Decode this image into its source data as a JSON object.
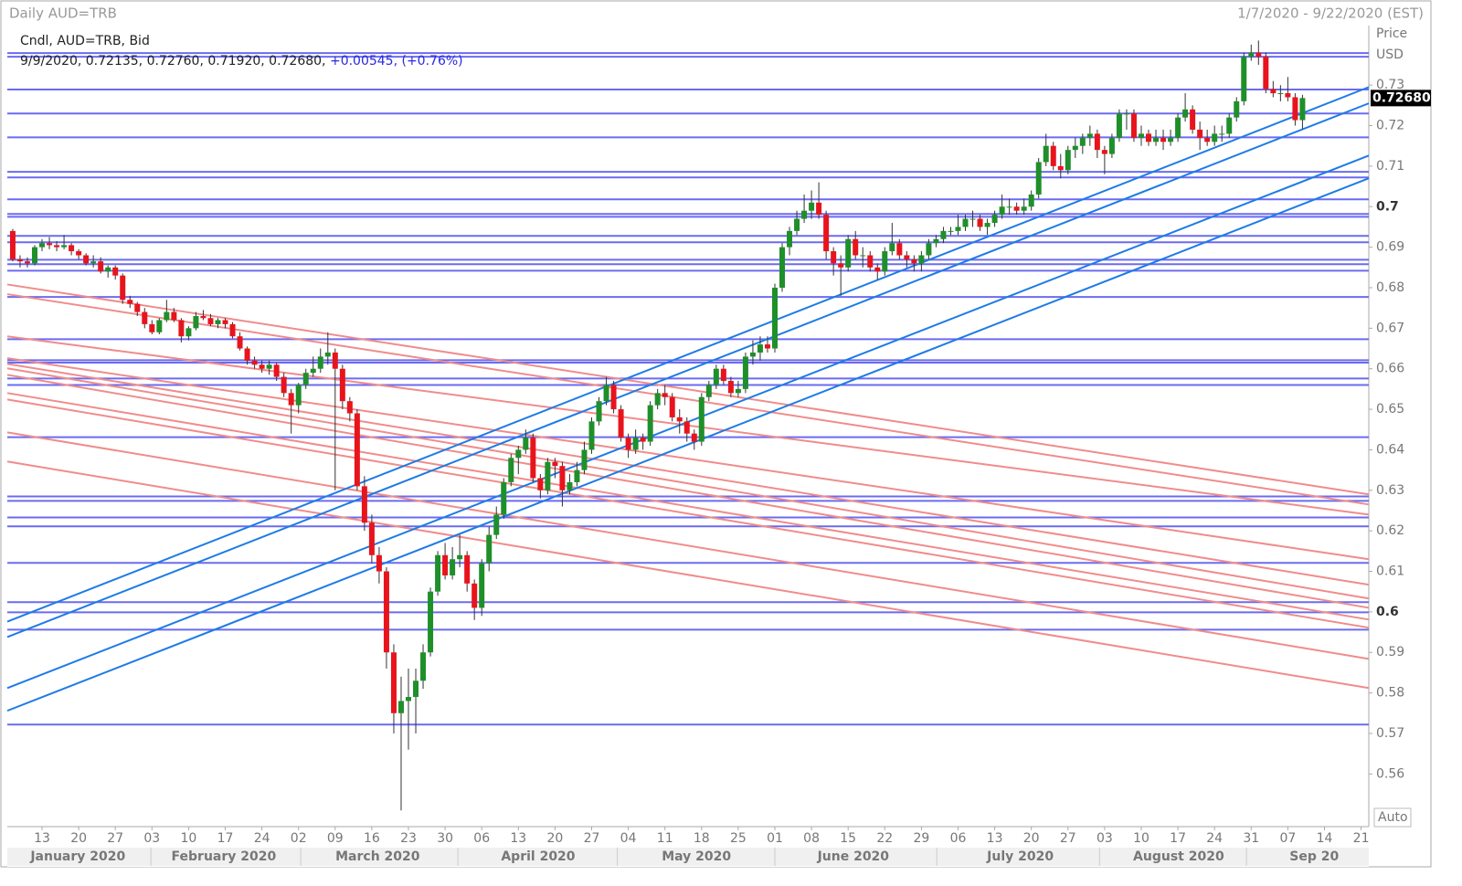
{
  "chart_data": {
    "type": "candlestick",
    "title": "Daily AUD=TRB",
    "date_range": "1/7/2020 - 9/22/2020 (EST)",
    "legend_title": "Cndl, AUD=TRB, Bid",
    "info_line": "9/9/2020, 0.72135, 0.72760, 0.71920, 0.72680,",
    "change_text": "+0.00545, (+0.76%)",
    "axis_title": "Price",
    "axis_unit": "USD",
    "scale_mode": "Auto",
    "up_color": "#1f8f2a",
    "down_color": "#e8141c",
    "hline_color": "#6b6bf0",
    "support_color": "#1e7be6",
    "resistance_color": "#f08c8c",
    "xlim": [
      -0.74,
      185.05
    ],
    "ylim": [
      0.547,
      0.751
    ],
    "yticks": [
      0.73,
      0.72,
      0.71,
      0.7,
      0.69,
      0.68,
      0.67,
      0.66,
      0.65,
      0.64,
      0.63,
      0.62,
      0.61,
      0.6,
      0.59,
      0.58,
      0.57,
      0.56
    ],
    "last_price": {
      "value": 0.7268,
      "label": "0.72680"
    },
    "xticks": [
      {
        "value": 4,
        "label": "13"
      },
      {
        "value": 9,
        "label": "20"
      },
      {
        "value": 14,
        "label": "27"
      },
      {
        "value": 19,
        "label": "03"
      },
      {
        "value": 24,
        "label": "10"
      },
      {
        "value": 29,
        "label": "17"
      },
      {
        "value": 34,
        "label": "24"
      },
      {
        "value": 39,
        "label": "02"
      },
      {
        "value": 44,
        "label": "09"
      },
      {
        "value": 49,
        "label": "16"
      },
      {
        "value": 54,
        "label": "23"
      },
      {
        "value": 59,
        "label": "30"
      },
      {
        "value": 64,
        "label": "06"
      },
      {
        "value": 69,
        "label": "13"
      },
      {
        "value": 74,
        "label": "20"
      },
      {
        "value": 79,
        "label": "27"
      },
      {
        "value": 84,
        "label": "04"
      },
      {
        "value": 89,
        "label": "11"
      },
      {
        "value": 94,
        "label": "18"
      },
      {
        "value": 99,
        "label": "25"
      },
      {
        "value": 104,
        "label": "01"
      },
      {
        "value": 109,
        "label": "08"
      },
      {
        "value": 114,
        "label": "15"
      },
      {
        "value": 119,
        "label": "22"
      },
      {
        "value": 124,
        "label": "29"
      },
      {
        "value": 129,
        "label": "06"
      },
      {
        "value": 134,
        "label": "13"
      },
      {
        "value": 139,
        "label": "20"
      },
      {
        "value": 144,
        "label": "27"
      },
      {
        "value": 149,
        "label": "03"
      },
      {
        "value": 154,
        "label": "10"
      },
      {
        "value": 159,
        "label": "17"
      },
      {
        "value": 164,
        "label": "24"
      },
      {
        "value": 169,
        "label": "31"
      },
      {
        "value": 174,
        "label": "07"
      },
      {
        "value": 179,
        "label": "14"
      },
      {
        "value": 184,
        "label": "21"
      }
    ],
    "months": [
      {
        "value": 8.9,
        "label": "January 2020"
      },
      {
        "value": 28.8,
        "label": "February 2020"
      },
      {
        "value": 49.8,
        "label": "March 2020"
      },
      {
        "value": 71.7,
        "label": "April 2020"
      },
      {
        "value": 93.3,
        "label": "May 2020"
      },
      {
        "value": 114.7,
        "label": "June 2020"
      },
      {
        "value": 137.5,
        "label": "July 2020"
      },
      {
        "value": 159.1,
        "label": "August 2020"
      },
      {
        "value": 177.6,
        "label": "Sep 20"
      }
    ],
    "hlines": [
      0.7379,
      0.737,
      0.7289,
      0.723,
      0.7171,
      0.7086,
      0.7072,
      0.7018,
      0.6982,
      0.6975,
      0.6928,
      0.6912,
      0.6869,
      0.6858,
      0.6842,
      0.6777,
      0.6673,
      0.6621,
      0.6615,
      0.6576,
      0.656,
      0.6431,
      0.6285,
      0.6274,
      0.6233,
      0.6211,
      0.6121,
      0.6024,
      0.5999,
      0.5956,
      0.5722
    ],
    "support_lines": [
      [
        0.5976,
        0.7295
      ],
      [
        0.5938,
        0.7255
      ],
      [
        0.5812,
        0.7126
      ],
      [
        0.5756,
        0.707
      ]
    ],
    "resistance_lines": [
      [
        0.6808,
        0.629
      ],
      [
        0.6784,
        0.6265
      ],
      [
        0.668,
        0.624
      ],
      [
        0.6626,
        0.613
      ],
      [
        0.6612,
        0.6067
      ],
      [
        0.6601,
        0.6033
      ],
      [
        0.6585,
        0.601
      ],
      [
        0.654,
        0.5981
      ],
      [
        0.6524,
        0.5961
      ],
      [
        0.6443,
        0.5884
      ],
      [
        0.6371,
        0.5812
      ]
    ],
    "ohlc": [
      [
        0.694,
        0.6945,
        0.6865,
        0.687
      ],
      [
        0.687,
        0.688,
        0.685,
        0.6865
      ],
      [
        0.6865,
        0.6875,
        0.685,
        0.686
      ],
      [
        0.686,
        0.6905,
        0.6855,
        0.69
      ],
      [
        0.69,
        0.692,
        0.689,
        0.691
      ],
      [
        0.691,
        0.6925,
        0.6895,
        0.6905
      ],
      [
        0.6905,
        0.6915,
        0.689,
        0.69
      ],
      [
        0.69,
        0.693,
        0.6895,
        0.6905
      ],
      [
        0.6905,
        0.691,
        0.688,
        0.689
      ],
      [
        0.689,
        0.6895,
        0.687,
        0.688
      ],
      [
        0.688,
        0.6885,
        0.6855,
        0.686
      ],
      [
        0.686,
        0.688,
        0.685,
        0.6865
      ],
      [
        0.6865,
        0.6875,
        0.6835,
        0.684
      ],
      [
        0.684,
        0.6855,
        0.6825,
        0.685
      ],
      [
        0.685,
        0.6855,
        0.682,
        0.683
      ],
      [
        0.683,
        0.6835,
        0.676,
        0.677
      ],
      [
        0.677,
        0.678,
        0.675,
        0.676
      ],
      [
        0.676,
        0.6765,
        0.673,
        0.674
      ],
      [
        0.674,
        0.675,
        0.67,
        0.671
      ],
      [
        0.671,
        0.672,
        0.6685,
        0.669
      ],
      [
        0.669,
        0.6725,
        0.6685,
        0.672
      ],
      [
        0.672,
        0.677,
        0.6715,
        0.674
      ],
      [
        0.674,
        0.675,
        0.6715,
        0.672
      ],
      [
        0.672,
        0.6725,
        0.6665,
        0.668
      ],
      [
        0.668,
        0.6705,
        0.667,
        0.67
      ],
      [
        0.67,
        0.674,
        0.6695,
        0.673
      ],
      [
        0.673,
        0.6745,
        0.672,
        0.6725
      ],
      [
        0.6725,
        0.6735,
        0.6705,
        0.671
      ],
      [
        0.671,
        0.6725,
        0.67,
        0.672
      ],
      [
        0.672,
        0.6725,
        0.67,
        0.671
      ],
      [
        0.671,
        0.6715,
        0.6675,
        0.668
      ],
      [
        0.668,
        0.669,
        0.6645,
        0.665
      ],
      [
        0.665,
        0.6655,
        0.661,
        0.662
      ],
      [
        0.662,
        0.663,
        0.66,
        0.661
      ],
      [
        0.661,
        0.662,
        0.659,
        0.66
      ],
      [
        0.66,
        0.662,
        0.6585,
        0.661
      ],
      [
        0.661,
        0.6615,
        0.657,
        0.658
      ],
      [
        0.658,
        0.659,
        0.653,
        0.654
      ],
      [
        0.654,
        0.655,
        0.644,
        0.651
      ],
      [
        0.651,
        0.6565,
        0.649,
        0.656
      ],
      [
        0.656,
        0.66,
        0.655,
        0.659
      ],
      [
        0.659,
        0.663,
        0.658,
        0.66
      ],
      [
        0.66,
        0.665,
        0.659,
        0.663
      ],
      [
        0.663,
        0.669,
        0.661,
        0.664
      ],
      [
        0.664,
        0.665,
        0.63,
        0.66
      ],
      [
        0.66,
        0.661,
        0.65,
        0.652
      ],
      [
        0.652,
        0.653,
        0.647,
        0.649
      ],
      [
        0.649,
        0.65,
        0.63,
        0.631
      ],
      [
        0.631,
        0.6335,
        0.62,
        0.622
      ],
      [
        0.622,
        0.624,
        0.612,
        0.614
      ],
      [
        0.614,
        0.616,
        0.607,
        0.61
      ],
      [
        0.61,
        0.611,
        0.586,
        0.59
      ],
      [
        0.59,
        0.592,
        0.57,
        0.575
      ],
      [
        0.575,
        0.584,
        0.551,
        0.578
      ],
      [
        0.578,
        0.586,
        0.566,
        0.579
      ],
      [
        0.579,
        0.586,
        0.57,
        0.583
      ],
      [
        0.583,
        0.592,
        0.581,
        0.59
      ],
      [
        0.59,
        0.606,
        0.589,
        0.605
      ],
      [
        0.605,
        0.615,
        0.604,
        0.614
      ],
      [
        0.614,
        0.617,
        0.608,
        0.609
      ],
      [
        0.609,
        0.616,
        0.608,
        0.613
      ],
      [
        0.613,
        0.619,
        0.611,
        0.614
      ],
      [
        0.614,
        0.615,
        0.605,
        0.607
      ],
      [
        0.607,
        0.608,
        0.598,
        0.601
      ],
      [
        0.601,
        0.613,
        0.599,
        0.612
      ],
      [
        0.612,
        0.621,
        0.61,
        0.619
      ],
      [
        0.619,
        0.626,
        0.618,
        0.624
      ],
      [
        0.624,
        0.633,
        0.623,
        0.632
      ],
      [
        0.632,
        0.639,
        0.631,
        0.638
      ],
      [
        0.638,
        0.641,
        0.634,
        0.64
      ],
      [
        0.64,
        0.645,
        0.639,
        0.643
      ],
      [
        0.643,
        0.644,
        0.632,
        0.633
      ],
      [
        0.633,
        0.634,
        0.628,
        0.63
      ],
      [
        0.63,
        0.638,
        0.629,
        0.637
      ],
      [
        0.637,
        0.638,
        0.633,
        0.636
      ],
      [
        0.636,
        0.637,
        0.626,
        0.63
      ],
      [
        0.63,
        0.634,
        0.629,
        0.632
      ],
      [
        0.632,
        0.637,
        0.631,
        0.635
      ],
      [
        0.635,
        0.642,
        0.634,
        0.64
      ],
      [
        0.64,
        0.648,
        0.639,
        0.647
      ],
      [
        0.647,
        0.653,
        0.646,
        0.652
      ],
      [
        0.652,
        0.658,
        0.651,
        0.656
      ],
      [
        0.656,
        0.657,
        0.649,
        0.65
      ],
      [
        0.65,
        0.651,
        0.642,
        0.643
      ],
      [
        0.643,
        0.644,
        0.638,
        0.64
      ],
      [
        0.64,
        0.645,
        0.639,
        0.643
      ],
      [
        0.643,
        0.644,
        0.64,
        0.642
      ],
      [
        0.642,
        0.652,
        0.641,
        0.651
      ],
      [
        0.651,
        0.655,
        0.65,
        0.654
      ],
      [
        0.654,
        0.656,
        0.651,
        0.653
      ],
      [
        0.653,
        0.654,
        0.647,
        0.648
      ],
      [
        0.648,
        0.65,
        0.644,
        0.647
      ],
      [
        0.647,
        0.648,
        0.642,
        0.644
      ],
      [
        0.644,
        0.645,
        0.64,
        0.642
      ],
      [
        0.642,
        0.654,
        0.641,
        0.653
      ],
      [
        0.653,
        0.657,
        0.652,
        0.656
      ],
      [
        0.656,
        0.661,
        0.655,
        0.66
      ],
      [
        0.66,
        0.661,
        0.656,
        0.657
      ],
      [
        0.657,
        0.658,
        0.653,
        0.654
      ],
      [
        0.654,
        0.657,
        0.653,
        0.655
      ],
      [
        0.655,
        0.664,
        0.654,
        0.663
      ],
      [
        0.663,
        0.667,
        0.661,
        0.664
      ],
      [
        0.664,
        0.668,
        0.662,
        0.666
      ],
      [
        0.666,
        0.668,
        0.664,
        0.665
      ],
      [
        0.665,
        0.681,
        0.664,
        0.68
      ],
      [
        0.68,
        0.691,
        0.679,
        0.69
      ],
      [
        0.69,
        0.695,
        0.688,
        0.694
      ],
      [
        0.694,
        0.699,
        0.693,
        0.697
      ],
      [
        0.697,
        0.703,
        0.696,
        0.699
      ],
      [
        0.699,
        0.704,
        0.697,
        0.701
      ],
      [
        0.701,
        0.706,
        0.697,
        0.698
      ],
      [
        0.698,
        0.699,
        0.687,
        0.689
      ],
      [
        0.689,
        0.69,
        0.683,
        0.686
      ],
      [
        0.686,
        0.688,
        0.678,
        0.685
      ],
      [
        0.685,
        0.693,
        0.684,
        0.692
      ],
      [
        0.692,
        0.694,
        0.687,
        0.688
      ],
      [
        0.688,
        0.69,
        0.685,
        0.688
      ],
      [
        0.688,
        0.689,
        0.684,
        0.685
      ],
      [
        0.685,
        0.686,
        0.682,
        0.684
      ],
      [
        0.684,
        0.69,
        0.683,
        0.689
      ],
      [
        0.689,
        0.696,
        0.688,
        0.691
      ],
      [
        0.691,
        0.692,
        0.687,
        0.688
      ],
      [
        0.688,
        0.689,
        0.685,
        0.687
      ],
      [
        0.687,
        0.688,
        0.684,
        0.686
      ],
      [
        0.686,
        0.689,
        0.684,
        0.688
      ],
      [
        0.688,
        0.692,
        0.687,
        0.691
      ],
      [
        0.691,
        0.693,
        0.69,
        0.692
      ],
      [
        0.692,
        0.695,
        0.691,
        0.694
      ],
      [
        0.694,
        0.695,
        0.693,
        0.694
      ],
      [
        0.694,
        0.698,
        0.693,
        0.695
      ],
      [
        0.695,
        0.698,
        0.694,
        0.697
      ],
      [
        0.697,
        0.699,
        0.695,
        0.697
      ],
      [
        0.697,
        0.698,
        0.694,
        0.695
      ],
      [
        0.695,
        0.697,
        0.693,
        0.696
      ],
      [
        0.696,
        0.699,
        0.695,
        0.698
      ],
      [
        0.698,
        0.703,
        0.697,
        0.7
      ],
      [
        0.7,
        0.702,
        0.698,
        0.7
      ],
      [
        0.7,
        0.701,
        0.698,
        0.699
      ],
      [
        0.699,
        0.702,
        0.698,
        0.7
      ],
      [
        0.7,
        0.704,
        0.699,
        0.703
      ],
      [
        0.703,
        0.712,
        0.702,
        0.711
      ],
      [
        0.711,
        0.718,
        0.71,
        0.715
      ],
      [
        0.715,
        0.716,
        0.709,
        0.71
      ],
      [
        0.71,
        0.713,
        0.707,
        0.709
      ],
      [
        0.709,
        0.715,
        0.708,
        0.714
      ],
      [
        0.714,
        0.717,
        0.712,
        0.715
      ],
      [
        0.715,
        0.718,
        0.713,
        0.717
      ],
      [
        0.717,
        0.72,
        0.715,
        0.718
      ],
      [
        0.718,
        0.719,
        0.712,
        0.714
      ],
      [
        0.714,
        0.715,
        0.708,
        0.713
      ],
      [
        0.713,
        0.718,
        0.712,
        0.717
      ],
      [
        0.717,
        0.724,
        0.716,
        0.723
      ],
      [
        0.723,
        0.724,
        0.719,
        0.723
      ],
      [
        0.723,
        0.724,
        0.716,
        0.717
      ],
      [
        0.717,
        0.72,
        0.715,
        0.718
      ],
      [
        0.718,
        0.719,
        0.715,
        0.716
      ],
      [
        0.716,
        0.719,
        0.715,
        0.717
      ],
      [
        0.717,
        0.719,
        0.714,
        0.716
      ],
      [
        0.716,
        0.719,
        0.715,
        0.717
      ],
      [
        0.717,
        0.723,
        0.716,
        0.722
      ],
      [
        0.722,
        0.728,
        0.721,
        0.724
      ],
      [
        0.724,
        0.725,
        0.718,
        0.719
      ],
      [
        0.719,
        0.721,
        0.714,
        0.717
      ],
      [
        0.717,
        0.719,
        0.715,
        0.716
      ],
      [
        0.716,
        0.72,
        0.715,
        0.718
      ],
      [
        0.718,
        0.72,
        0.716,
        0.718
      ],
      [
        0.718,
        0.723,
        0.717,
        0.722
      ],
      [
        0.722,
        0.727,
        0.721,
        0.726
      ],
      [
        0.726,
        0.738,
        0.725,
        0.737
      ],
      [
        0.737,
        0.74,
        0.736,
        0.738
      ],
      [
        0.738,
        0.741,
        0.735,
        0.737
      ],
      [
        0.737,
        0.738,
        0.728,
        0.729
      ],
      [
        0.729,
        0.731,
        0.727,
        0.728
      ],
      [
        0.728,
        0.73,
        0.726,
        0.728
      ],
      [
        0.728,
        0.732,
        0.726,
        0.727
      ],
      [
        0.727,
        0.728,
        0.72,
        0.72135
      ],
      [
        0.72135,
        0.7276,
        0.7192,
        0.7268
      ]
    ]
  }
}
